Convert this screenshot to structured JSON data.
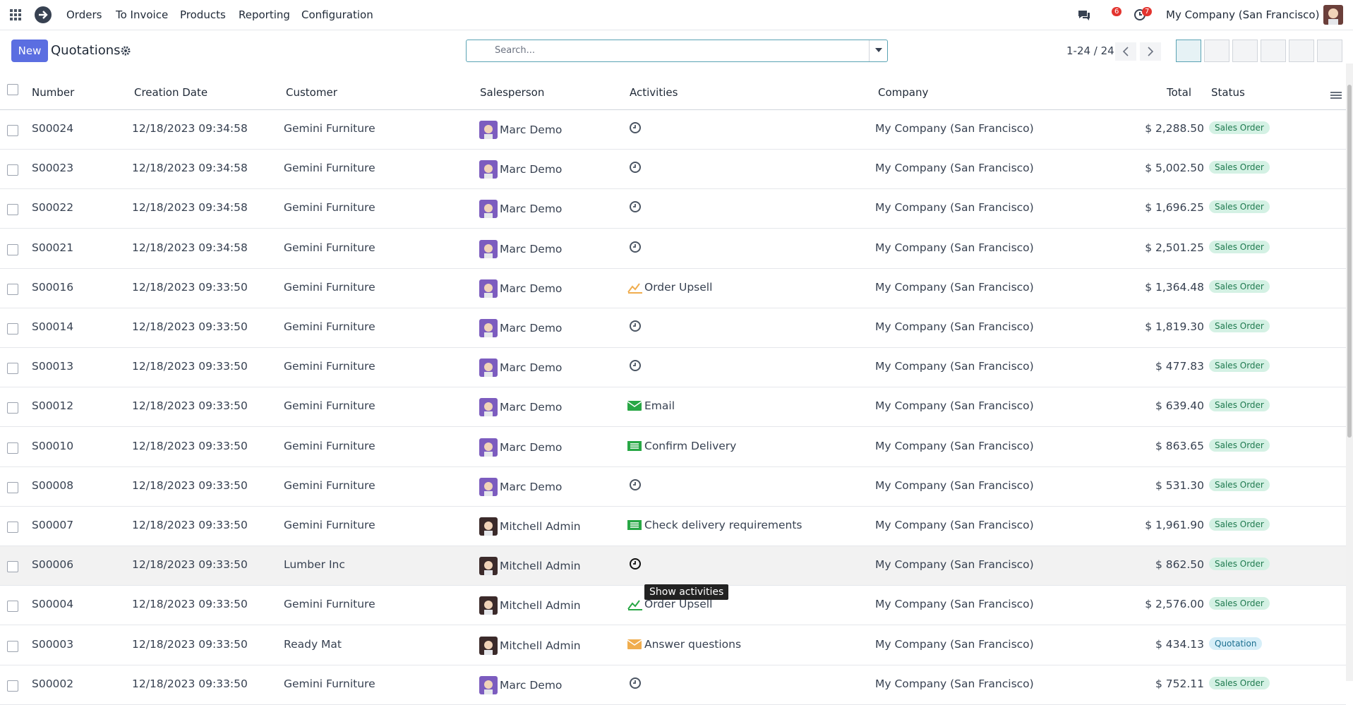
{
  "app_menu": [
    "Orders",
    "To Invoice",
    "Products",
    "Reporting",
    "Configuration"
  ],
  "systray": {
    "messages": "6",
    "activities": "7",
    "company": "My Company (San Francisco)"
  },
  "control_panel": {
    "new_button": "New",
    "title": "Quotations",
    "search_placeholder": "Search...",
    "pager": "1-24 / 24"
  },
  "table": {
    "headers": [
      "Number",
      "Creation Date",
      "Customer",
      "Salesperson",
      "Activities",
      "Company",
      "Total",
      "Status"
    ],
    "rows": [
      {
        "number": "S00024",
        "date": "12/18/2023 09:34:58",
        "customer": "Gemini Furniture",
        "salesperson": "Marc Demo",
        "activity": null,
        "company": "My Company (San Francisco)",
        "total": "$ 2,288.50",
        "status": "Sales Order"
      },
      {
        "number": "S00023",
        "date": "12/18/2023 09:34:58",
        "customer": "Gemini Furniture",
        "salesperson": "Marc Demo",
        "activity": null,
        "company": "My Company (San Francisco)",
        "total": "$ 5,002.50",
        "status": "Sales Order"
      },
      {
        "number": "S00022",
        "date": "12/18/2023 09:34:58",
        "customer": "Gemini Furniture",
        "salesperson": "Marc Demo",
        "activity": null,
        "company": "My Company (San Francisco)",
        "total": "$ 1,696.25",
        "status": "Sales Order"
      },
      {
        "number": "S00021",
        "date": "12/18/2023 09:34:58",
        "customer": "Gemini Furniture",
        "salesperson": "Marc Demo",
        "activity": null,
        "company": "My Company (San Francisco)",
        "total": "$ 2,501.25",
        "status": "Sales Order"
      },
      {
        "number": "S00016",
        "date": "12/18/2023 09:33:50",
        "customer": "Gemini Furniture",
        "salesperson": "Marc Demo",
        "activity": {
          "label": "Order Upsell",
          "icon": "upsell",
          "color": "#f0ad4e"
        },
        "company": "My Company (San Francisco)",
        "total": "$ 1,364.48",
        "status": "Sales Order"
      },
      {
        "number": "S00014",
        "date": "12/18/2023 09:33:50",
        "customer": "Gemini Furniture",
        "salesperson": "Marc Demo",
        "activity": null,
        "company": "My Company (San Francisco)",
        "total": "$ 1,819.30",
        "status": "Sales Order"
      },
      {
        "number": "S00013",
        "date": "12/18/2023 09:33:50",
        "customer": "Gemini Furniture",
        "salesperson": "Marc Demo",
        "activity": null,
        "company": "My Company (San Francisco)",
        "total": "$ 477.83",
        "status": "Sales Order"
      },
      {
        "number": "S00012",
        "date": "12/18/2023 09:33:50",
        "customer": "Gemini Furniture",
        "salesperson": "Marc Demo",
        "activity": {
          "label": "Email",
          "icon": "email",
          "color": "#28a745"
        },
        "company": "My Company (San Francisco)",
        "total": "$ 639.40",
        "status": "Sales Order"
      },
      {
        "number": "S00010",
        "date": "12/18/2023 09:33:50",
        "customer": "Gemini Furniture",
        "salesperson": "Marc Demo",
        "activity": {
          "label": "Confirm Delivery",
          "icon": "delivery",
          "color": "#28a745"
        },
        "company": "My Company (San Francisco)",
        "total": "$ 863.65",
        "status": "Sales Order"
      },
      {
        "number": "S00008",
        "date": "12/18/2023 09:33:50",
        "customer": "Gemini Furniture",
        "salesperson": "Marc Demo",
        "activity": null,
        "company": "My Company (San Francisco)",
        "total": "$ 531.30",
        "status": "Sales Order"
      },
      {
        "number": "S00007",
        "date": "12/18/2023 09:33:50",
        "customer": "Gemini Furniture",
        "salesperson": "Mitchell Admin",
        "activity": {
          "label": "Check delivery requirements",
          "icon": "delivery",
          "color": "#28a745"
        },
        "company": "My Company (San Francisco)",
        "total": "$ 1,961.90",
        "status": "Sales Order"
      },
      {
        "number": "S00006",
        "date": "12/18/2023 09:33:50",
        "customer": "Lumber Inc",
        "salesperson": "Mitchell Admin",
        "activity": null,
        "company": "My Company (San Francisco)",
        "total": "$ 862.50",
        "status": "Sales Order",
        "hovered": true,
        "tooltip": "Show activities"
      },
      {
        "number": "S00004",
        "date": "12/18/2023 09:33:50",
        "customer": "Gemini Furniture",
        "salesperson": "Mitchell Admin",
        "activity": {
          "label": "Order Upsell",
          "icon": "upsell",
          "color": "#28a745"
        },
        "company": "My Company (San Francisco)",
        "total": "$ 2,576.00",
        "status": "Sales Order"
      },
      {
        "number": "S00003",
        "date": "12/18/2023 09:33:50",
        "customer": "Ready Mat",
        "salesperson": "Mitchell Admin",
        "activity": {
          "label": "Answer questions",
          "icon": "email",
          "color": "#f0ad4e"
        },
        "company": "My Company (San Francisco)",
        "total": "$ 434.13",
        "status": "Quotation"
      },
      {
        "number": "S00002",
        "date": "12/18/2023 09:33:50",
        "customer": "Gemini Furniture",
        "salesperson": "Marc Demo",
        "activity": null,
        "company": "My Company (San Francisco)",
        "total": "$ 752.11",
        "status": "Sales Order"
      }
    ]
  }
}
